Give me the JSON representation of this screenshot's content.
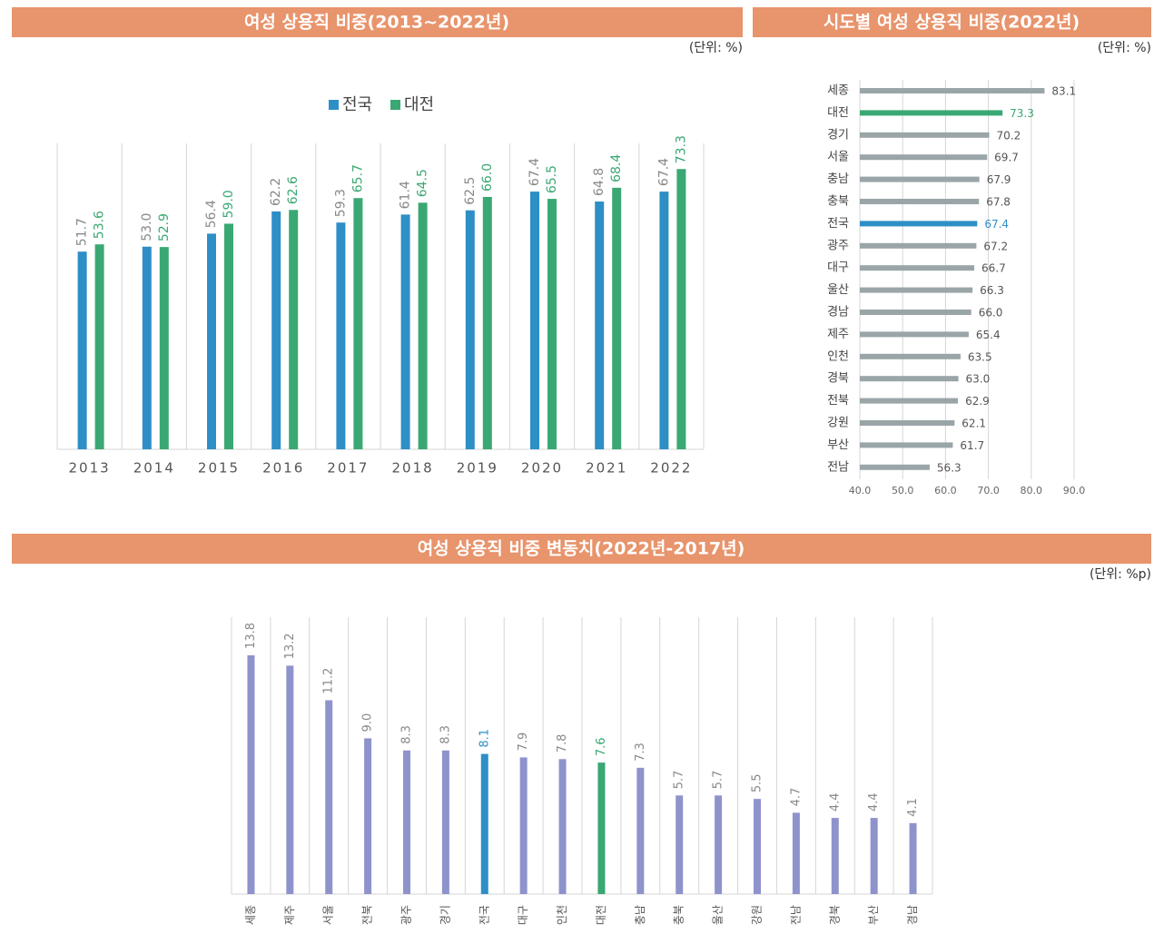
{
  "chart_data": [
    {
      "type": "grouped-bar",
      "title": "여성 상용직 비중(2013~2022년)",
      "unit": "(단위: %)",
      "categories": [
        "2013",
        "2014",
        "2015",
        "2016",
        "2017",
        "2018",
        "2019",
        "2020",
        "2021",
        "2022"
      ],
      "series": [
        {
          "name": "전국",
          "color": "#2e8fc6",
          "values": [
            51.7,
            53.0,
            56.4,
            62.2,
            59.3,
            61.4,
            62.5,
            67.4,
            64.8,
            67.4
          ],
          "value_labels": [
            "51.7",
            "53.0",
            "56.4",
            "62.2",
            "59.3",
            "61.4",
            "62.5",
            "67.4",
            "64.8",
            "67.4"
          ]
        },
        {
          "name": "대전",
          "color": "#3aa873",
          "values": [
            53.6,
            52.9,
            59.0,
            62.6,
            65.7,
            64.5,
            66.0,
            65.5,
            68.4,
            73.3
          ],
          "value_labels": [
            "53.6",
            "52.9",
            "59.0",
            "62.6",
            "65.7",
            "64.5",
            "66.0",
            "65.5",
            "68.4",
            "73.3"
          ]
        }
      ],
      "ylim": [
        0,
        80
      ]
    },
    {
      "type": "hbar",
      "title": "시도별 여성 상용직 비중(2022년)",
      "unit": "(단위: %)",
      "categories": [
        "세종",
        "대전",
        "경기",
        "서울",
        "충남",
        "충북",
        "전국",
        "광주",
        "대구",
        "울산",
        "경남",
        "제주",
        "인천",
        "경북",
        "전북",
        "강원",
        "부산",
        "전남"
      ],
      "values": [
        83.1,
        73.3,
        70.2,
        69.7,
        67.9,
        67.8,
        67.4,
        67.2,
        66.7,
        66.3,
        66.0,
        65.4,
        63.5,
        63.0,
        62.9,
        62.1,
        61.7,
        56.3
      ],
      "value_labels": [
        "83.1",
        "73.3",
        "70.2",
        "69.7",
        "67.9",
        "67.8",
        "67.4",
        "67.2",
        "66.7",
        "66.3",
        "66.0",
        "65.4",
        "63.5",
        "63.0",
        "62.9",
        "62.1",
        "61.7",
        "56.3"
      ],
      "color": "#9aa5a8",
      "colors": [
        "#9aa5a8",
        "#3aa873",
        "#9aa5a8",
        "#9aa5a8",
        "#9aa5a8",
        "#9aa5a8",
        "#2e8fc6",
        "#9aa5a8",
        "#9aa5a8",
        "#9aa5a8",
        "#9aa5a8",
        "#9aa5a8",
        "#9aa5a8",
        "#9aa5a8",
        "#9aa5a8",
        "#9aa5a8",
        "#9aa5a8",
        "#9aa5a8"
      ],
      "xlim": [
        40,
        90
      ],
      "xticks": [
        {
          "value": 40,
          "label": "40.0"
        },
        {
          "value": 50,
          "label": "50.0"
        },
        {
          "value": 60,
          "label": "60.0"
        },
        {
          "value": 70,
          "label": "70.0"
        },
        {
          "value": 80,
          "label": "80.0"
        },
        {
          "value": 90,
          "label": "90.0"
        }
      ],
      "grid": true
    },
    {
      "type": "bar",
      "title": "여성 상용직 비중 변동치(2022년-2017년)",
      "unit": "(단위: %p)",
      "categories": [
        "세종",
        "제주",
        "서울",
        "전북",
        "광주",
        "경기",
        "전국",
        "대구",
        "인천",
        "대전",
        "충남",
        "충북",
        "울산",
        "강원",
        "전남",
        "경북",
        "부산",
        "경남"
      ],
      "values": [
        13.8,
        13.2,
        11.2,
        9.0,
        8.3,
        8.3,
        8.1,
        7.9,
        7.8,
        7.6,
        7.3,
        5.7,
        5.7,
        5.5,
        4.7,
        4.4,
        4.4,
        4.1
      ],
      "value_labels": [
        "13.8",
        "13.2",
        "11.2",
        "9.0",
        "8.3",
        "8.3",
        "8.1",
        "7.9",
        "7.8",
        "7.6",
        "7.3",
        "5.7",
        "5.7",
        "5.5",
        "4.7",
        "4.4",
        "4.4",
        "4.1"
      ],
      "color": "#8e93cc",
      "colors": [
        "#8e93cc",
        "#8e93cc",
        "#8e93cc",
        "#8e93cc",
        "#8e93cc",
        "#8e93cc",
        "#2e8fc6",
        "#8e93cc",
        "#8e93cc",
        "#3aa873",
        "#8e93cc",
        "#8e93cc",
        "#8e93cc",
        "#8e93cc",
        "#8e93cc",
        "#8e93cc",
        "#8e93cc",
        "#8e93cc"
      ],
      "ylim": [
        0,
        16
      ]
    }
  ]
}
